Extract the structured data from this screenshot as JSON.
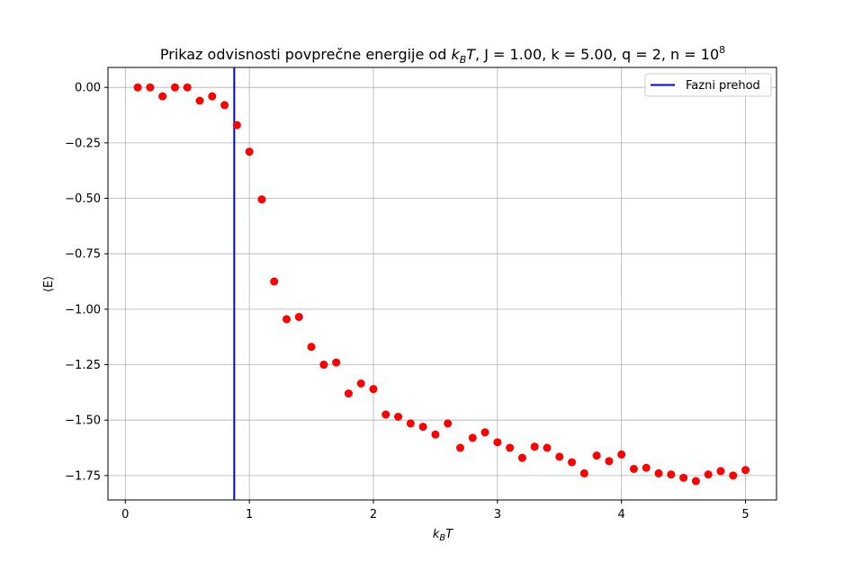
{
  "chart_data": {
    "type": "scatter",
    "title": {
      "prefix": "Prikaz odvisnosti povprečne energije od ",
      "math": ", J = 1.00, k = 5.00, q = 2, n = 10",
      "exponent": "8"
    },
    "xlabel": "k_BT",
    "ylabel": "⟨E⟩",
    "xlim": [
      -0.14,
      5.25
    ],
    "ylim": [
      -1.86,
      0.09
    ],
    "xticks": [
      0,
      1,
      2,
      3,
      4,
      5
    ],
    "xtick_labels": [
      "0",
      "1",
      "2",
      "3",
      "4",
      "5"
    ],
    "yticks": [
      0.0,
      -0.25,
      -0.5,
      -0.75,
      -1.0,
      -1.25,
      -1.5,
      -1.75
    ],
    "ytick_labels": [
      "0.00",
      "−0.25",
      "−0.50",
      "−0.75",
      "−1.00",
      "−1.25",
      "−1.50",
      "−1.75"
    ],
    "grid": true,
    "legend_position": "top-right",
    "series": [
      {
        "kind": "scatter",
        "color": "#ff0000",
        "x": [
          0.1,
          0.2,
          0.3,
          0.4,
          0.5,
          0.6,
          0.7,
          0.8,
          0.9,
          1.0,
          1.1,
          1.2,
          1.3,
          1.4,
          1.5,
          1.6,
          1.7,
          1.8,
          1.9,
          2.0,
          2.1,
          2.2,
          2.3,
          2.4,
          2.5,
          2.6,
          2.7,
          2.8,
          2.9,
          3.0,
          3.1,
          3.2,
          3.3,
          3.4,
          3.5,
          3.6,
          3.7,
          3.8,
          3.9,
          4.0,
          4.1,
          4.2,
          4.3,
          4.4,
          4.5,
          4.6,
          4.7,
          4.8,
          4.9,
          5.0
        ],
        "y": [
          0.0,
          0.0,
          -0.04,
          0.0,
          0.0,
          -0.06,
          -0.04,
          -0.08,
          -0.17,
          -0.29,
          -0.505,
          -0.875,
          -1.045,
          -1.035,
          -1.17,
          -1.25,
          -1.24,
          -1.38,
          -1.335,
          -1.36,
          -1.475,
          -1.485,
          -1.515,
          -1.53,
          -1.565,
          -1.515,
          -1.625,
          -1.58,
          -1.555,
          -1.6,
          -1.625,
          -1.67,
          -1.62,
          -1.625,
          -1.665,
          -1.69,
          -1.74,
          -1.66,
          -1.685,
          -1.655,
          -1.72,
          -1.715,
          -1.74,
          -1.745,
          -1.76,
          -1.775,
          -1.745,
          -1.73,
          -1.75,
          -1.725
        ]
      },
      {
        "kind": "vline",
        "name": "Fazni prehod",
        "color": "#0000ff",
        "x": 0.878
      }
    ]
  }
}
